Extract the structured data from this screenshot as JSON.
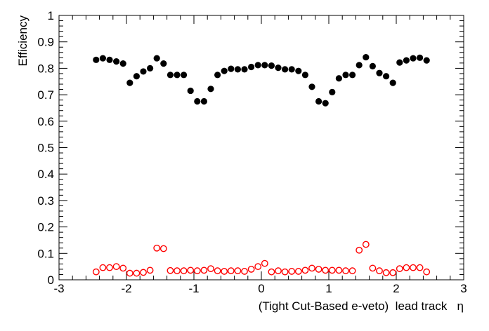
{
  "chart_data": {
    "type": "scatter",
    "xlabel": "(Tight Cut-Based e-veto)  lead track   η",
    "ylabel": "Efficiency",
    "xlim": [
      -3,
      3
    ],
    "ylim": [
      0,
      1
    ],
    "x_ticks": [
      "-3",
      "-2",
      "-1",
      "0",
      "1",
      "2",
      "3"
    ],
    "y_ticks": [
      "0",
      "0.1",
      "0.2",
      "0.3",
      "0.4",
      "0.5",
      "0.6",
      "0.7",
      "0.8",
      "0.9",
      "1"
    ],
    "grid": false,
    "x": [
      -2.45,
      -2.35,
      -2.25,
      -2.15,
      -2.05,
      -1.95,
      -1.85,
      -1.75,
      -1.65,
      -1.55,
      -1.45,
      -1.35,
      -1.25,
      -1.15,
      -1.05,
      -0.95,
      -0.85,
      -0.75,
      -0.65,
      -0.55,
      -0.45,
      -0.35,
      -0.25,
      -0.15,
      -0.05,
      0.05,
      0.15,
      0.25,
      0.35,
      0.45,
      0.55,
      0.65,
      0.75,
      0.85,
      0.95,
      1.05,
      1.15,
      1.25,
      1.35,
      1.45,
      1.55,
      1.65,
      1.75,
      1.85,
      1.95,
      2.05,
      2.15,
      2.25,
      2.35,
      2.45
    ],
    "series": [
      {
        "marker": "filled-circle",
        "color": "#000000",
        "values": [
          0.832,
          0.838,
          0.832,
          0.826,
          0.818,
          0.745,
          0.77,
          0.788,
          0.8,
          0.838,
          0.818,
          0.775,
          0.775,
          0.775,
          0.715,
          0.675,
          0.675,
          0.722,
          0.775,
          0.79,
          0.798,
          0.796,
          0.796,
          0.805,
          0.812,
          0.812,
          0.81,
          0.802,
          0.796,
          0.796,
          0.79,
          0.775,
          0.73,
          0.675,
          0.668,
          0.71,
          0.762,
          0.775,
          0.775,
          0.812,
          0.842,
          0.808,
          0.782,
          0.77,
          0.745,
          0.822,
          0.83,
          0.838,
          0.84,
          0.83
        ]
      },
      {
        "marker": "open-circle",
        "color": "#ff0000",
        "values": [
          0.03,
          0.046,
          0.046,
          0.05,
          0.044,
          0.025,
          0.025,
          0.028,
          0.036,
          0.12,
          0.118,
          0.035,
          0.034,
          0.034,
          0.036,
          0.034,
          0.036,
          0.042,
          0.034,
          0.032,
          0.034,
          0.034,
          0.032,
          0.04,
          0.05,
          0.062,
          0.03,
          0.034,
          0.03,
          0.032,
          0.032,
          0.036,
          0.044,
          0.04,
          0.036,
          0.036,
          0.036,
          0.034,
          0.034,
          0.112,
          0.134,
          0.044,
          0.034,
          0.027,
          0.027,
          0.042,
          0.046,
          0.046,
          0.046,
          0.03
        ]
      }
    ]
  }
}
